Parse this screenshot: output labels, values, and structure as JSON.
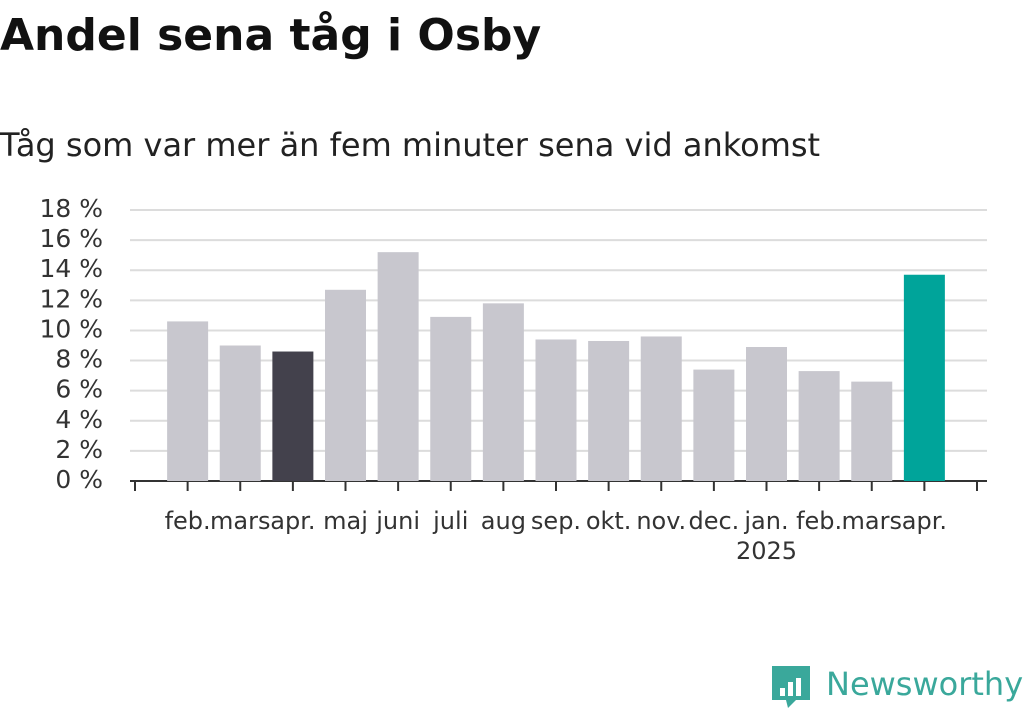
{
  "chart_data": {
    "type": "bar",
    "title": "Andel sena tåg i Osby",
    "subtitle": "Tåg som var mer än fem minuter sena vid ankomst",
    "categories": [
      "feb.",
      "mars",
      "apr.",
      "maj",
      "juni",
      "juli",
      "aug",
      "sep.",
      "okt.",
      "nov.",
      "dec.",
      "jan.\n2025",
      "feb.",
      "mars",
      "apr."
    ],
    "values": [
      10.6,
      9.0,
      8.6,
      12.7,
      15.2,
      10.9,
      11.8,
      9.4,
      9.3,
      9.6,
      7.4,
      8.9,
      7.3,
      6.6,
      13.7
    ],
    "colors": [
      "#c8c7ce",
      "#c8c7ce",
      "#43414c",
      "#c8c7ce",
      "#c8c7ce",
      "#c8c7ce",
      "#c8c7ce",
      "#c8c7ce",
      "#c8c7ce",
      "#c8c7ce",
      "#c8c7ce",
      "#c8c7ce",
      "#c8c7ce",
      "#c8c7ce",
      "#00a49a"
    ],
    "ylim": [
      0,
      18
    ],
    "yticks": [
      {
        "value": 0,
        "label": "0 %"
      },
      {
        "value": 2,
        "label": "2 %"
      },
      {
        "value": 4,
        "label": "4 %"
      },
      {
        "value": 6,
        "label": "6 %"
      },
      {
        "value": 8,
        "label": "8 %"
      },
      {
        "value": 10,
        "label": "10 %"
      },
      {
        "value": 12,
        "label": "12 %"
      },
      {
        "value": 14,
        "label": "14 %"
      },
      {
        "value": 16,
        "label": "16 %"
      },
      {
        "value": 18,
        "label": "18 %"
      }
    ],
    "grid": true
  },
  "brand": "Newsworthy"
}
